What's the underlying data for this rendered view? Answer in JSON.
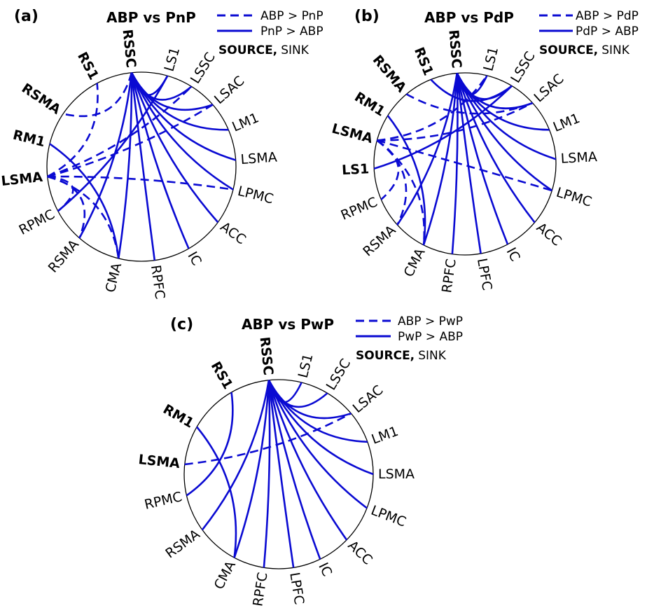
{
  "colors": {
    "edge": "#0a0ad2",
    "circle": "#000000",
    "text": "#000000"
  },
  "legend_common": {
    "source_label": "SOURCE,",
    "sink_label": "SINK"
  },
  "panels": [
    {
      "tag": "(a)",
      "title": "ABP vs PnP",
      "legend_dashed": "ABP > PnP",
      "legend_solid": "PnP > ABP",
      "nodes": [
        {
          "label": "RSSC",
          "angle": 96,
          "bold": true
        },
        {
          "label": "LS1",
          "angle": 74,
          "bold": false
        },
        {
          "label": "LSSC",
          "angle": 58,
          "bold": false
        },
        {
          "label": "LSAC",
          "angle": 41,
          "bold": false
        },
        {
          "label": "LM1",
          "angle": 23,
          "bold": false
        },
        {
          "label": "LSMA",
          "angle": 4,
          "bold": false
        },
        {
          "label": "LPMC",
          "angle": -14,
          "bold": false
        },
        {
          "label": "ACC",
          "angle": -36,
          "bold": false
        },
        {
          "label": "IC",
          "angle": -60,
          "bold": false
        },
        {
          "label": "RPFC",
          "angle": -82,
          "bold": false
        },
        {
          "label": "CMA",
          "angle": -104,
          "bold": false
        },
        {
          "label": "RSMA",
          "angle": -131,
          "bold": false
        },
        {
          "label": "RPMC",
          "angle": -152,
          "bold": false
        },
        {
          "label": "LSMA",
          "angle": 186,
          "bold": true
        },
        {
          "label": "RM1",
          "angle": 166,
          "bold": true
        },
        {
          "label": "RSMA",
          "angle": 146,
          "bold": true
        },
        {
          "label": "RS1",
          "angle": 118,
          "bold": true
        }
      ],
      "edges": [
        {
          "from": 0,
          "to": 1,
          "style": "solid"
        },
        {
          "from": 0,
          "to": 2,
          "style": "solid"
        },
        {
          "from": 0,
          "to": 3,
          "style": "solid"
        },
        {
          "from": 0,
          "to": 4,
          "style": "solid"
        },
        {
          "from": 0,
          "to": 5,
          "style": "solid"
        },
        {
          "from": 0,
          "to": 6,
          "style": "solid"
        },
        {
          "from": 0,
          "to": 7,
          "style": "solid"
        },
        {
          "from": 0,
          "to": 8,
          "style": "solid"
        },
        {
          "from": 0,
          "to": 9,
          "style": "solid"
        },
        {
          "from": 0,
          "to": 10,
          "style": "solid"
        },
        {
          "from": 0,
          "to": 11,
          "style": "solid"
        },
        {
          "from": 0,
          "to": 15,
          "style": "dashed"
        },
        {
          "from": 14,
          "to": 10,
          "style": "solid"
        },
        {
          "from": 12,
          "to": 1,
          "style": "solid"
        },
        {
          "from": 13,
          "to": 2,
          "style": "dashed"
        },
        {
          "from": 13,
          "to": 3,
          "style": "dashed"
        },
        {
          "from": 13,
          "to": 6,
          "style": "dashed"
        },
        {
          "from": 13,
          "to": 11,
          "style": "dashed"
        },
        {
          "from": 13,
          "to": 12,
          "style": "dashed"
        },
        {
          "from": 13,
          "to": 10,
          "style": "dashed"
        },
        {
          "from": 13,
          "to": 16,
          "style": "dashed"
        }
      ]
    },
    {
      "tag": "(b)",
      "title": "ABP vs PdP",
      "legend_dashed": "ABP > PdP",
      "legend_solid": "PdP > ABP",
      "nodes": [
        {
          "label": "RSSC",
          "angle": 95,
          "bold": true
        },
        {
          "label": "LS1",
          "angle": 76,
          "bold": false
        },
        {
          "label": "LSSC",
          "angle": 59,
          "bold": false
        },
        {
          "label": "LSAC",
          "angle": 42,
          "bold": false
        },
        {
          "label": "LM1",
          "angle": 22,
          "bold": false
        },
        {
          "label": "LSMA",
          "angle": 3,
          "bold": false
        },
        {
          "label": "LPMC",
          "angle": -17,
          "bold": false
        },
        {
          "label": "ACC",
          "angle": -40,
          "bold": false
        },
        {
          "label": "IC",
          "angle": -62,
          "bold": false
        },
        {
          "label": "LPFC",
          "angle": -80,
          "bold": false
        },
        {
          "label": "RPFC",
          "angle": -98,
          "bold": false
        },
        {
          "label": "CMA",
          "angle": -117,
          "bold": false
        },
        {
          "label": "RSMA",
          "angle": -138,
          "bold": false
        },
        {
          "label": "RPMC",
          "angle": -157,
          "bold": false
        },
        {
          "label": "LS1",
          "angle": 183,
          "bold": true
        },
        {
          "label": "LSMA",
          "angle": 165,
          "bold": true
        },
        {
          "label": "RM1",
          "angle": 148,
          "bold": true
        },
        {
          "label": "RSMA",
          "angle": 130,
          "bold": true
        },
        {
          "label": "RS1",
          "angle": 112,
          "bold": true
        }
      ],
      "edges": [
        {
          "from": 0,
          "to": 1,
          "style": "solid"
        },
        {
          "from": 0,
          "to": 2,
          "style": "solid"
        },
        {
          "from": 0,
          "to": 3,
          "style": "solid"
        },
        {
          "from": 0,
          "to": 4,
          "style": "solid"
        },
        {
          "from": 0,
          "to": 5,
          "style": "solid"
        },
        {
          "from": 0,
          "to": 6,
          "style": "solid"
        },
        {
          "from": 0,
          "to": 7,
          "style": "solid"
        },
        {
          "from": 0,
          "to": 8,
          "style": "solid"
        },
        {
          "from": 0,
          "to": 9,
          "style": "solid"
        },
        {
          "from": 0,
          "to": 10,
          "style": "solid"
        },
        {
          "from": 0,
          "to": 11,
          "style": "solid"
        },
        {
          "from": 0,
          "to": 12,
          "style": "solid"
        },
        {
          "from": 18,
          "to": 2,
          "style": "solid"
        },
        {
          "from": 14,
          "to": 2,
          "style": "solid"
        },
        {
          "from": 16,
          "to": 11,
          "style": "solid"
        },
        {
          "from": 17,
          "to": 3,
          "style": "dashed"
        },
        {
          "from": 15,
          "to": 3,
          "style": "dashed"
        },
        {
          "from": 15,
          "to": 6,
          "style": "dashed"
        },
        {
          "from": 15,
          "to": 13,
          "style": "dashed"
        },
        {
          "from": 15,
          "to": 12,
          "style": "dashed"
        },
        {
          "from": 15,
          "to": 11,
          "style": "dashed"
        },
        {
          "from": 15,
          "to": 1,
          "style": "dashed"
        }
      ]
    },
    {
      "tag": "(c)",
      "title": "ABP vs PwP",
      "legend_dashed": "ABP > PwP",
      "legend_solid": "PwP > ABP",
      "nodes": [
        {
          "label": "RSSC",
          "angle": 96,
          "bold": true
        },
        {
          "label": "LS1",
          "angle": 76,
          "bold": false
        },
        {
          "label": "LSSC",
          "angle": 59,
          "bold": false
        },
        {
          "label": "LSAC",
          "angle": 40,
          "bold": false
        },
        {
          "label": "LM1",
          "angle": 20,
          "bold": false
        },
        {
          "label": "LSMA",
          "angle": 0,
          "bold": false
        },
        {
          "label": "LPMC",
          "angle": -21,
          "bold": false
        },
        {
          "label": "ACC",
          "angle": -44,
          "bold": false
        },
        {
          "label": "IC",
          "angle": -64,
          "bold": false
        },
        {
          "label": "LPFC",
          "angle": -81,
          "bold": false
        },
        {
          "label": "RPFC",
          "angle": -99,
          "bold": false
        },
        {
          "label": "CMA",
          "angle": -118,
          "bold": false
        },
        {
          "label": "RSMA",
          "angle": -144,
          "bold": false
        },
        {
          "label": "RPMC",
          "angle": -167,
          "bold": false
        },
        {
          "label": "LSMA",
          "angle": 174,
          "bold": true
        },
        {
          "label": "RM1",
          "angle": 150,
          "bold": true
        },
        {
          "label": "RS1",
          "angle": 120,
          "bold": true
        }
      ],
      "edges": [
        {
          "from": 0,
          "to": 1,
          "style": "solid"
        },
        {
          "from": 0,
          "to": 2,
          "style": "solid"
        },
        {
          "from": 0,
          "to": 3,
          "style": "solid"
        },
        {
          "from": 0,
          "to": 4,
          "style": "solid"
        },
        {
          "from": 0,
          "to": 5,
          "style": "solid"
        },
        {
          "from": 0,
          "to": 6,
          "style": "solid"
        },
        {
          "from": 0,
          "to": 7,
          "style": "solid"
        },
        {
          "from": 0,
          "to": 8,
          "style": "solid"
        },
        {
          "from": 0,
          "to": 9,
          "style": "solid"
        },
        {
          "from": 0,
          "to": 10,
          "style": "solid"
        },
        {
          "from": 0,
          "to": 11,
          "style": "solid"
        },
        {
          "from": 0,
          "to": 12,
          "style": "solid"
        },
        {
          "from": 16,
          "to": 13,
          "style": "solid"
        },
        {
          "from": 15,
          "to": 11,
          "style": "solid"
        },
        {
          "from": 14,
          "to": 3,
          "style": "dashed"
        }
      ]
    }
  ]
}
